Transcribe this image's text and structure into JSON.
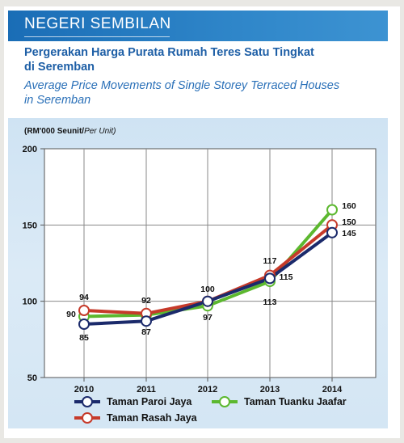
{
  "header": {
    "region": "NEGERI SEMBILAN",
    "subtitle_ms_line1": "Pergerakan Harga Purata Rumah Teres Satu Tingkat",
    "subtitle_ms_line2": "di Seremban",
    "subtitle_en_line1": "Average Price Movements of Single Storey Terraced Houses",
    "subtitle_en_line2": "in Seremban"
  },
  "chart_data": {
    "type": "line",
    "unit_label_ms": "(RM'000 Seunit/",
    "unit_label_en": "Per Unit)",
    "categories": [
      "2010",
      "2011",
      "2012",
      "2013",
      "2014"
    ],
    "ylim": [
      50,
      200
    ],
    "yticks": [
      "200",
      "150",
      "100",
      "50"
    ],
    "grid": true,
    "legend_position": "bottom",
    "series": [
      {
        "name": "Taman Paroi Jaya",
        "color": "#1b2a6b",
        "values": [
          85,
          87,
          100,
          115,
          145
        ]
      },
      {
        "name": "Taman Rasah Jaya",
        "color": "#c63a2a",
        "values": [
          94,
          92,
          100,
          117,
          150
        ]
      },
      {
        "name": "Taman Tuanku Jaafar",
        "color": "#5cb82f",
        "values": [
          90,
          91,
          97,
          113,
          160
        ]
      }
    ],
    "data_labels": {
      "2010": [
        "94",
        "90",
        "85"
      ],
      "2011": [
        "92",
        "87"
      ],
      "2012": [
        "100",
        "97"
      ],
      "2013": [
        "117",
        "115",
        "113"
      ],
      "2014": [
        "160",
        "150",
        "145"
      ]
    }
  }
}
